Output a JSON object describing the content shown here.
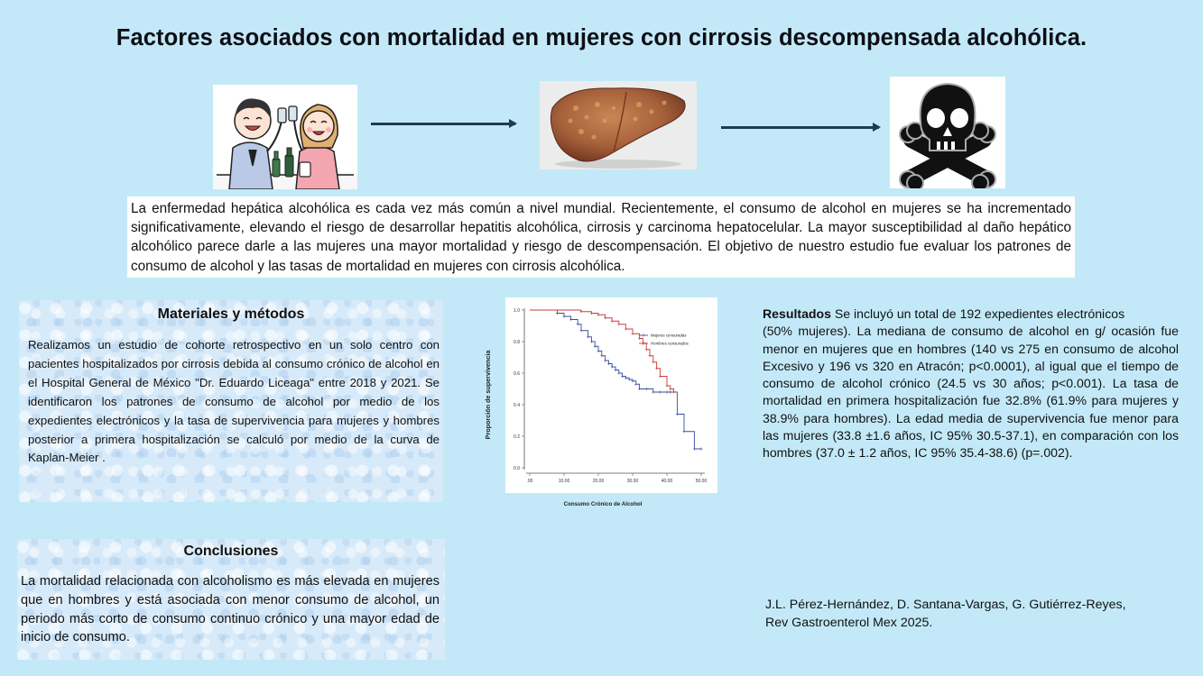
{
  "header": {
    "title": "Factores asociados con mortalidad en mujeres con cirrosis descompensada alcohólica."
  },
  "intro": {
    "text": "La enfermedad hepática alcohólica es cada vez más común a nivel mundial. Recientemente, el consumo de alcohol en mujeres se ha incrementado significativamente, elevando el riesgo de desarrollar hepatitis alcohólica, cirrosis y carcinoma hepatocelular. La mayor susceptibilidad al daño hepático alcohólico parece darle a las mujeres una mayor mortalidad y riesgo de descompensación. El objetivo de nuestro estudio fue evaluar los patrones de consumo de alcohol y las tasas de mortalidad en mujeres con cirrosis alcohólica."
  },
  "methods": {
    "title": "Materiales y métodos",
    "text": "Realizamos un estudio de cohorte retrospectivo en un solo centro con pacientes hospitalizados por cirrosis debida al consumo crónico de alcohol en el Hospital General de México \"Dr. Eduardo Liceaga\" entre 2018 y 2021. Se identificaron los patrones de consumo de alcohol por medio de los expedientes electrónicos y la tasa de supervivencia para mujeres y hombres posterior a primera hospitalización se calculó por medio de la curva de Kaplan-Meier ."
  },
  "conclusions": {
    "title": "Conclusiones",
    "text": "La mortalidad relacionada con alcoholismo es más elevada en mujeres que en hombres y está asociada con menor consumo de alcohol, un periodo más corto de consumo continuo crónico y una mayor edad de inicio de consumo."
  },
  "results": {
    "label": "Resultados",
    "line1": " Se incluyó un total de 192 expedientes electrónicos",
    "text": "(50% mujeres). La mediana de consumo de alcohol en g/ ocasión fue menor en mujeres que en hombres (140 vs 275 en consumo de alcohol Excesivo y 196 vs 320 en Atracón; p<0.0001), al igual que el tiempo de consumo de alcohol crónico (24.5 vs 30 años; p<0.001). La tasa de mortalidad en primera hospitalización fue 32.8% (61.9% para mujeres y 38.9% para hombres). La edad media de supervivencia fue menor para las mujeres (33.8 ±1.6 años, IC 95% 30.5-37.1), en comparación con los hombres (37.0 ± 1.2 años, IC 95% 35.4-38.6) (p=.002)."
  },
  "citation": {
    "line1": "J.L. Pérez-Hernández, D. Santana-Vargas, G. Gutiérrez-Reyes,",
    "line2": "Rev Gastroenterol Mex 2025."
  },
  "images": [
    {
      "icon": "couple-drinking-illustration"
    },
    {
      "icon": "cirrhotic-liver-photo"
    },
    {
      "icon": "skull-crossbones-icon"
    }
  ],
  "chart_data": {
    "type": "line",
    "title": "",
    "xlabel": "Consumo Crónico de Alcohol",
    "ylabel": "Proporción de supervivencia",
    "xlim": [
      0,
      50
    ],
    "ylim": [
      0,
      1
    ],
    "xticks": [
      ".00",
      "10.00",
      "20.00",
      "30.00",
      "40.00",
      "50.00"
    ],
    "xtick_values": [
      0,
      10,
      20,
      30,
      40,
      50
    ],
    "yticks": [
      "0.0",
      "0.2",
      "0.4",
      "0.6",
      "0.8",
      "1.0"
    ],
    "ytick_values": [
      0,
      0.2,
      0.4,
      0.6,
      0.8,
      1.0
    ],
    "legend_position": "top-right",
    "grid": false,
    "series": [
      {
        "name": "Mujeres censuradas",
        "color": "#3a4d9c",
        "x": [
          0,
          8,
          10,
          12,
          14,
          15,
          17,
          18,
          19,
          20,
          21,
          22,
          23,
          24,
          25,
          26,
          27,
          28,
          29,
          30,
          31,
          32,
          34,
          36,
          38,
          40,
          41,
          43,
          45,
          48,
          50
        ],
        "y": [
          1.0,
          0.98,
          0.96,
          0.94,
          0.91,
          0.87,
          0.83,
          0.8,
          0.77,
          0.74,
          0.71,
          0.68,
          0.66,
          0.64,
          0.62,
          0.6,
          0.58,
          0.57,
          0.56,
          0.55,
          0.53,
          0.5,
          0.5,
          0.48,
          0.48,
          0.48,
          0.48,
          0.34,
          0.23,
          0.12,
          0.12
        ]
      },
      {
        "name": "Hombres censurados",
        "color": "#c93b3b",
        "x": [
          0,
          15,
          18,
          20,
          22,
          24,
          26,
          28,
          30,
          32,
          33,
          34,
          35,
          36,
          37,
          38,
          40,
          41,
          42
        ],
        "y": [
          1.0,
          0.99,
          0.98,
          0.97,
          0.95,
          0.93,
          0.91,
          0.88,
          0.85,
          0.82,
          0.79,
          0.75,
          0.71,
          0.67,
          0.63,
          0.58,
          0.52,
          0.5,
          0.48
        ]
      }
    ]
  }
}
